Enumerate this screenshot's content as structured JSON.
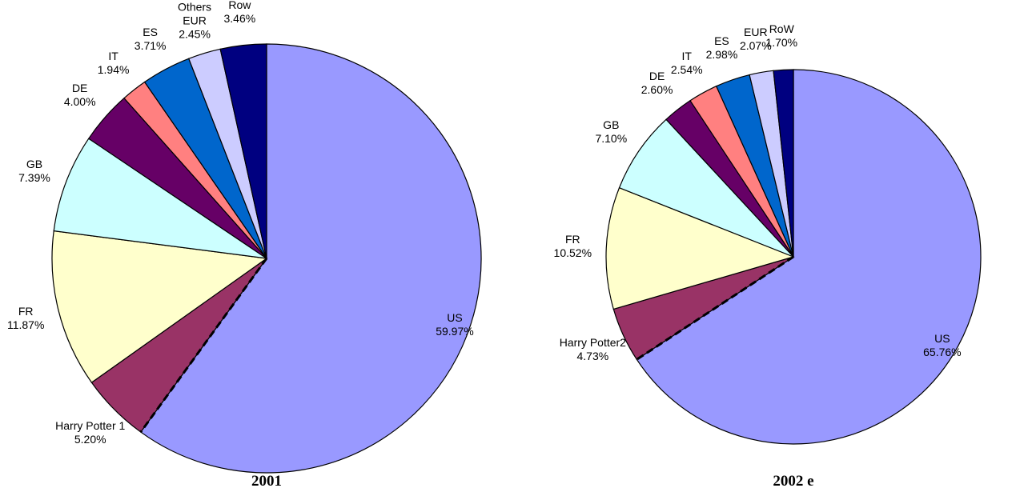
{
  "chart_data": [
    {
      "type": "pie",
      "title": "2001",
      "categories": [
        "US",
        "Harry Potter 1",
        "FR",
        "GB",
        "DE",
        "IT",
        "ES",
        "Others\nEUR",
        "Row"
      ],
      "values": [
        59.97,
        5.2,
        11.87,
        7.39,
        4.0,
        1.94,
        3.71,
        2.45,
        3.46
      ],
      "value_labels": [
        "59.97%",
        "5.20%",
        "11.87%",
        "7.39%",
        "4.00%",
        "1.94%",
        "3.71%",
        "2.45%",
        "3.46%"
      ],
      "colors": [
        "#9999ff",
        "#993366",
        "#ffffcc",
        "#ccffff",
        "#660066",
        "#ff8080",
        "#0066cc",
        "#ccccff",
        "#000080"
      ]
    },
    {
      "type": "pie",
      "title": "2002 e",
      "categories": [
        "US",
        "Harry Potter2",
        "FR",
        "GB",
        "DE",
        "IT",
        "ES",
        "EUR",
        "RoW"
      ],
      "values": [
        65.76,
        4.73,
        10.52,
        7.1,
        2.6,
        2.54,
        2.98,
        2.07,
        1.7
      ],
      "value_labels": [
        "65.76%",
        "4.73%",
        "10.52%",
        "7.10%",
        "2.60%",
        "2.54%",
        "2.98%",
        "2.07%",
        "1.70%"
      ],
      "colors": [
        "#9999ff",
        "#993366",
        "#ffffcc",
        "#ccffff",
        "#660066",
        "#ff8080",
        "#0066cc",
        "#ccccff",
        "#000080"
      ]
    }
  ]
}
